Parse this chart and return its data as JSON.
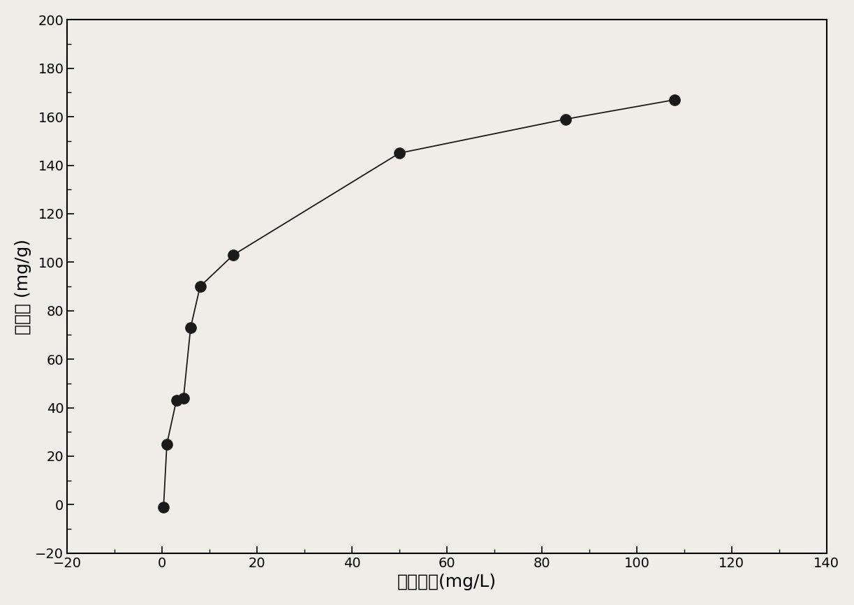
{
  "x": [
    0.3,
    1.0,
    3.0,
    4.5,
    6.0,
    8.0,
    15.0,
    50.0,
    85.0,
    108.0
  ],
  "y": [
    -1.0,
    25.0,
    43.0,
    44.0,
    73.0,
    90.0,
    103.0,
    145.0,
    159.0,
    167.0
  ],
  "xlabel": "平衡浓度(mg/L)",
  "ylabel": "吸附量 (mg/g)",
  "xlim": [
    -20,
    140
  ],
  "ylim": [
    -20,
    200
  ],
  "xticks": [
    -20,
    0,
    20,
    40,
    60,
    80,
    100,
    120,
    140
  ],
  "yticks": [
    -20,
    0,
    20,
    40,
    60,
    80,
    100,
    120,
    140,
    160,
    180,
    200
  ],
  "marker_color": "#1a1a1a",
  "marker_size": 11,
  "line_color": "#1a1a1a",
  "line_width": 1.3,
  "xlabel_fontsize": 18,
  "ylabel_fontsize": 18,
  "tick_fontsize": 14,
  "fig_width": 12.23,
  "fig_height": 8.66,
  "dpi": 100,
  "bg_color": "#f0ede8"
}
